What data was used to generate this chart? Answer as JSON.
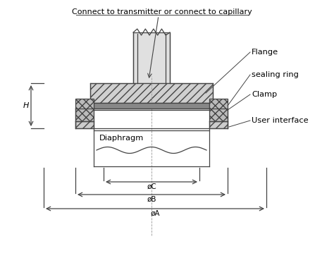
{
  "bg_color": "#ffffff",
  "line_color": "#444444",
  "labels": {
    "top": "Connect to transmitter or connect to capillary",
    "flange": "Flange",
    "sealing_ring": "sealing ring",
    "clamp": "Clamp",
    "user_interface": "User interface",
    "diaphragm": "Diaphragm",
    "H": "H",
    "dA": "øA",
    "dB": "øB",
    "dC": "øC"
  },
  "figsize": [
    4.74,
    3.66
  ],
  "dpi": 100
}
